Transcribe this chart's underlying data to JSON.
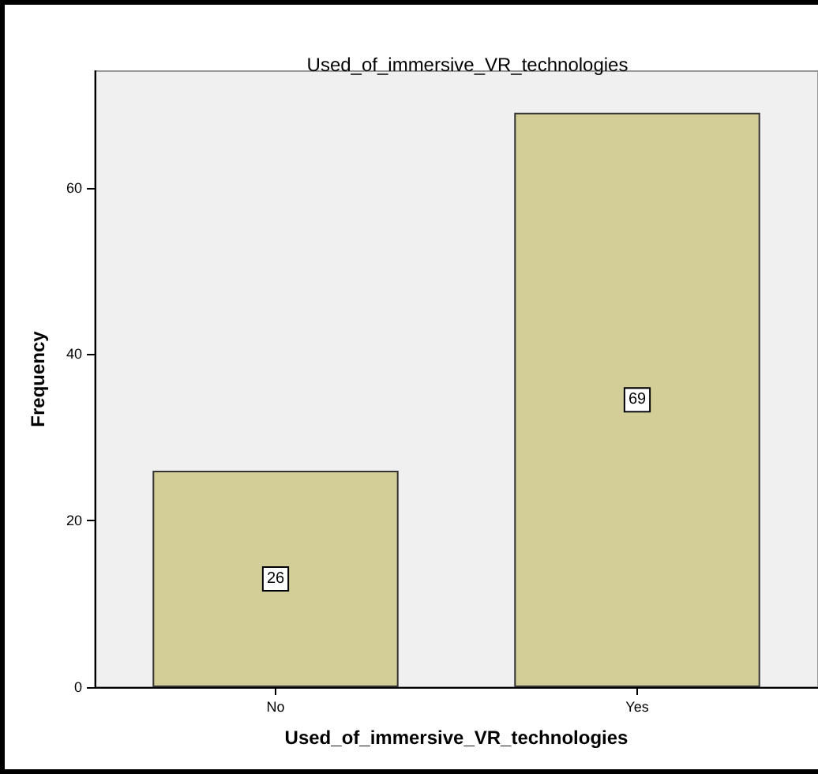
{
  "chart_data": {
    "type": "bar",
    "title": "Used_of_immersive_VR_technologies",
    "xlabel": "Used_of_immersive_VR_technologies",
    "ylabel": "Frequency",
    "categories": [
      "No",
      "Yes"
    ],
    "values": [
      26,
      69
    ],
    "color": "#d3ce97",
    "ylim": [
      0,
      74
    ],
    "yticks": [
      0,
      20,
      40,
      60
    ],
    "grid": false,
    "data_labels": true
  }
}
